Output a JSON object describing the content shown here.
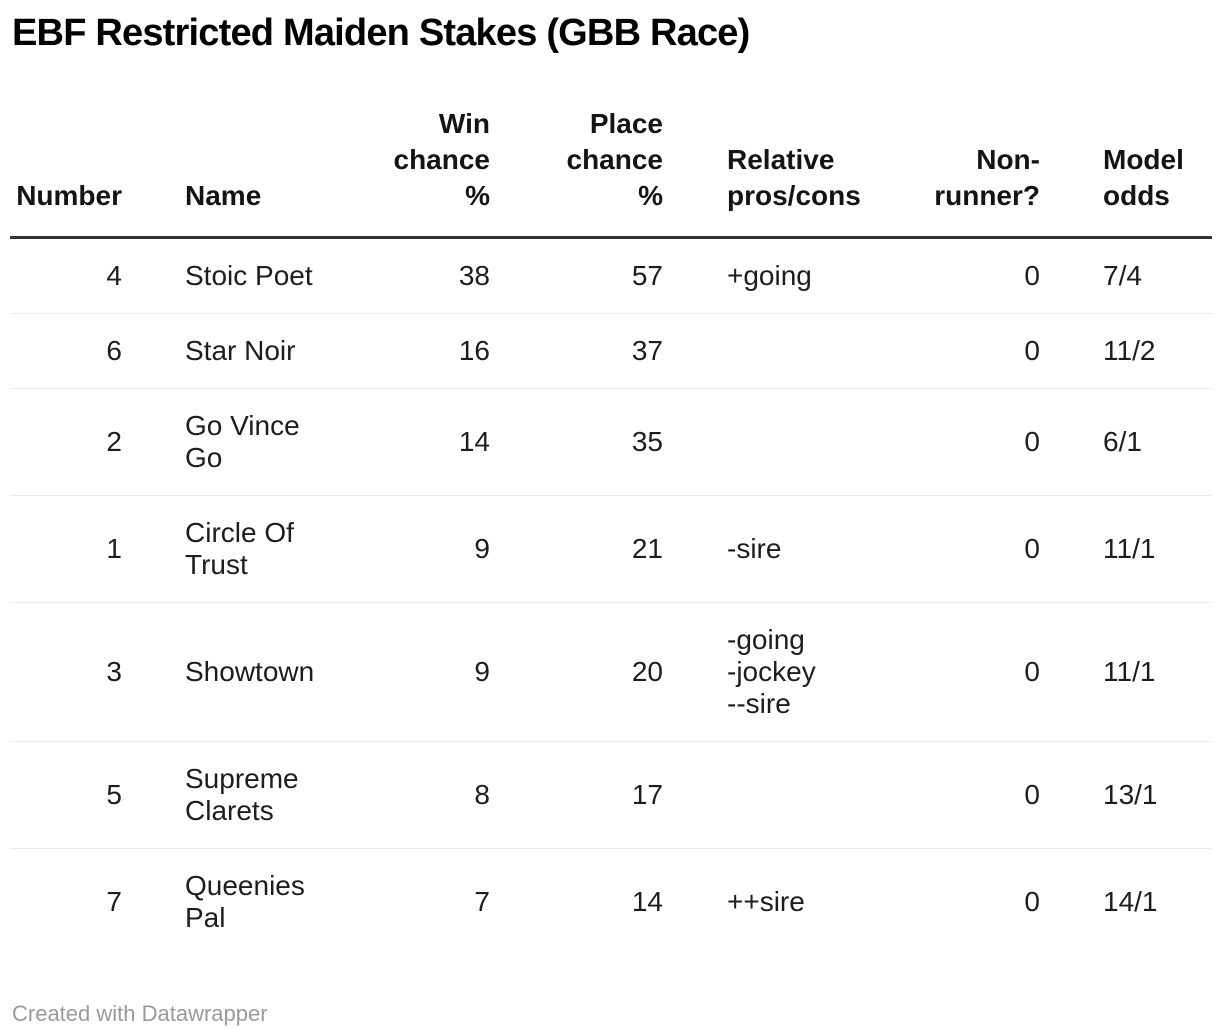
{
  "title": "EBF Restricted Maiden Stakes (GBB Race)",
  "footer": {
    "attribution_prefix": "Created with ",
    "attribution_link": "Datawrapper"
  },
  "colors": {
    "title_text": "#000000",
    "body_text": "#1d1d1d",
    "header_rule": "#333333",
    "row_divider": "#ebebeb",
    "footer_text": "#9a9a9a",
    "background": "#ffffff"
  },
  "chart_data": {
    "type": "table",
    "title": "EBF Restricted Maiden Stakes (GBB Race)",
    "columns": [
      {
        "key": "number",
        "label": "Number",
        "align": "right"
      },
      {
        "key": "name",
        "label": "Name",
        "align": "left"
      },
      {
        "key": "win_chance_pct",
        "label": "Win\nchance\n%",
        "align": "right"
      },
      {
        "key": "place_chance_pct",
        "label": "Place\nchance\n%",
        "align": "right"
      },
      {
        "key": "relative_pros_cons",
        "label": "Relative\npros/cons",
        "align": "left"
      },
      {
        "key": "non_runner",
        "label": "Non-\nrunner?",
        "align": "right"
      },
      {
        "key": "model_odds",
        "label": "Model\nodds",
        "align": "left"
      }
    ],
    "rows": [
      {
        "number": 4,
        "name": "Stoic Poet",
        "win_chance_pct": 38,
        "place_chance_pct": 57,
        "relative_pros_cons": "+going",
        "non_runner": 0,
        "model_odds": "7/4"
      },
      {
        "number": 6,
        "name": "Star Noir",
        "win_chance_pct": 16,
        "place_chance_pct": 37,
        "relative_pros_cons": "",
        "non_runner": 0,
        "model_odds": "11/2"
      },
      {
        "number": 2,
        "name": "Go Vince Go",
        "win_chance_pct": 14,
        "place_chance_pct": 35,
        "relative_pros_cons": "",
        "non_runner": 0,
        "model_odds": "6/1"
      },
      {
        "number": 1,
        "name": "Circle Of Trust",
        "win_chance_pct": 9,
        "place_chance_pct": 21,
        "relative_pros_cons": "-sire",
        "non_runner": 0,
        "model_odds": "11/1"
      },
      {
        "number": 3,
        "name": "Showtown",
        "win_chance_pct": 9,
        "place_chance_pct": 20,
        "relative_pros_cons": "-going\n-jockey\n--sire",
        "non_runner": 0,
        "model_odds": "11/1"
      },
      {
        "number": 5,
        "name": "Supreme Clarets",
        "win_chance_pct": 8,
        "place_chance_pct": 17,
        "relative_pros_cons": "",
        "non_runner": 0,
        "model_odds": "13/1"
      },
      {
        "number": 7,
        "name": "Queenies Pal",
        "win_chance_pct": 7,
        "place_chance_pct": 14,
        "relative_pros_cons": "++sire",
        "non_runner": 0,
        "model_odds": "14/1"
      }
    ]
  }
}
